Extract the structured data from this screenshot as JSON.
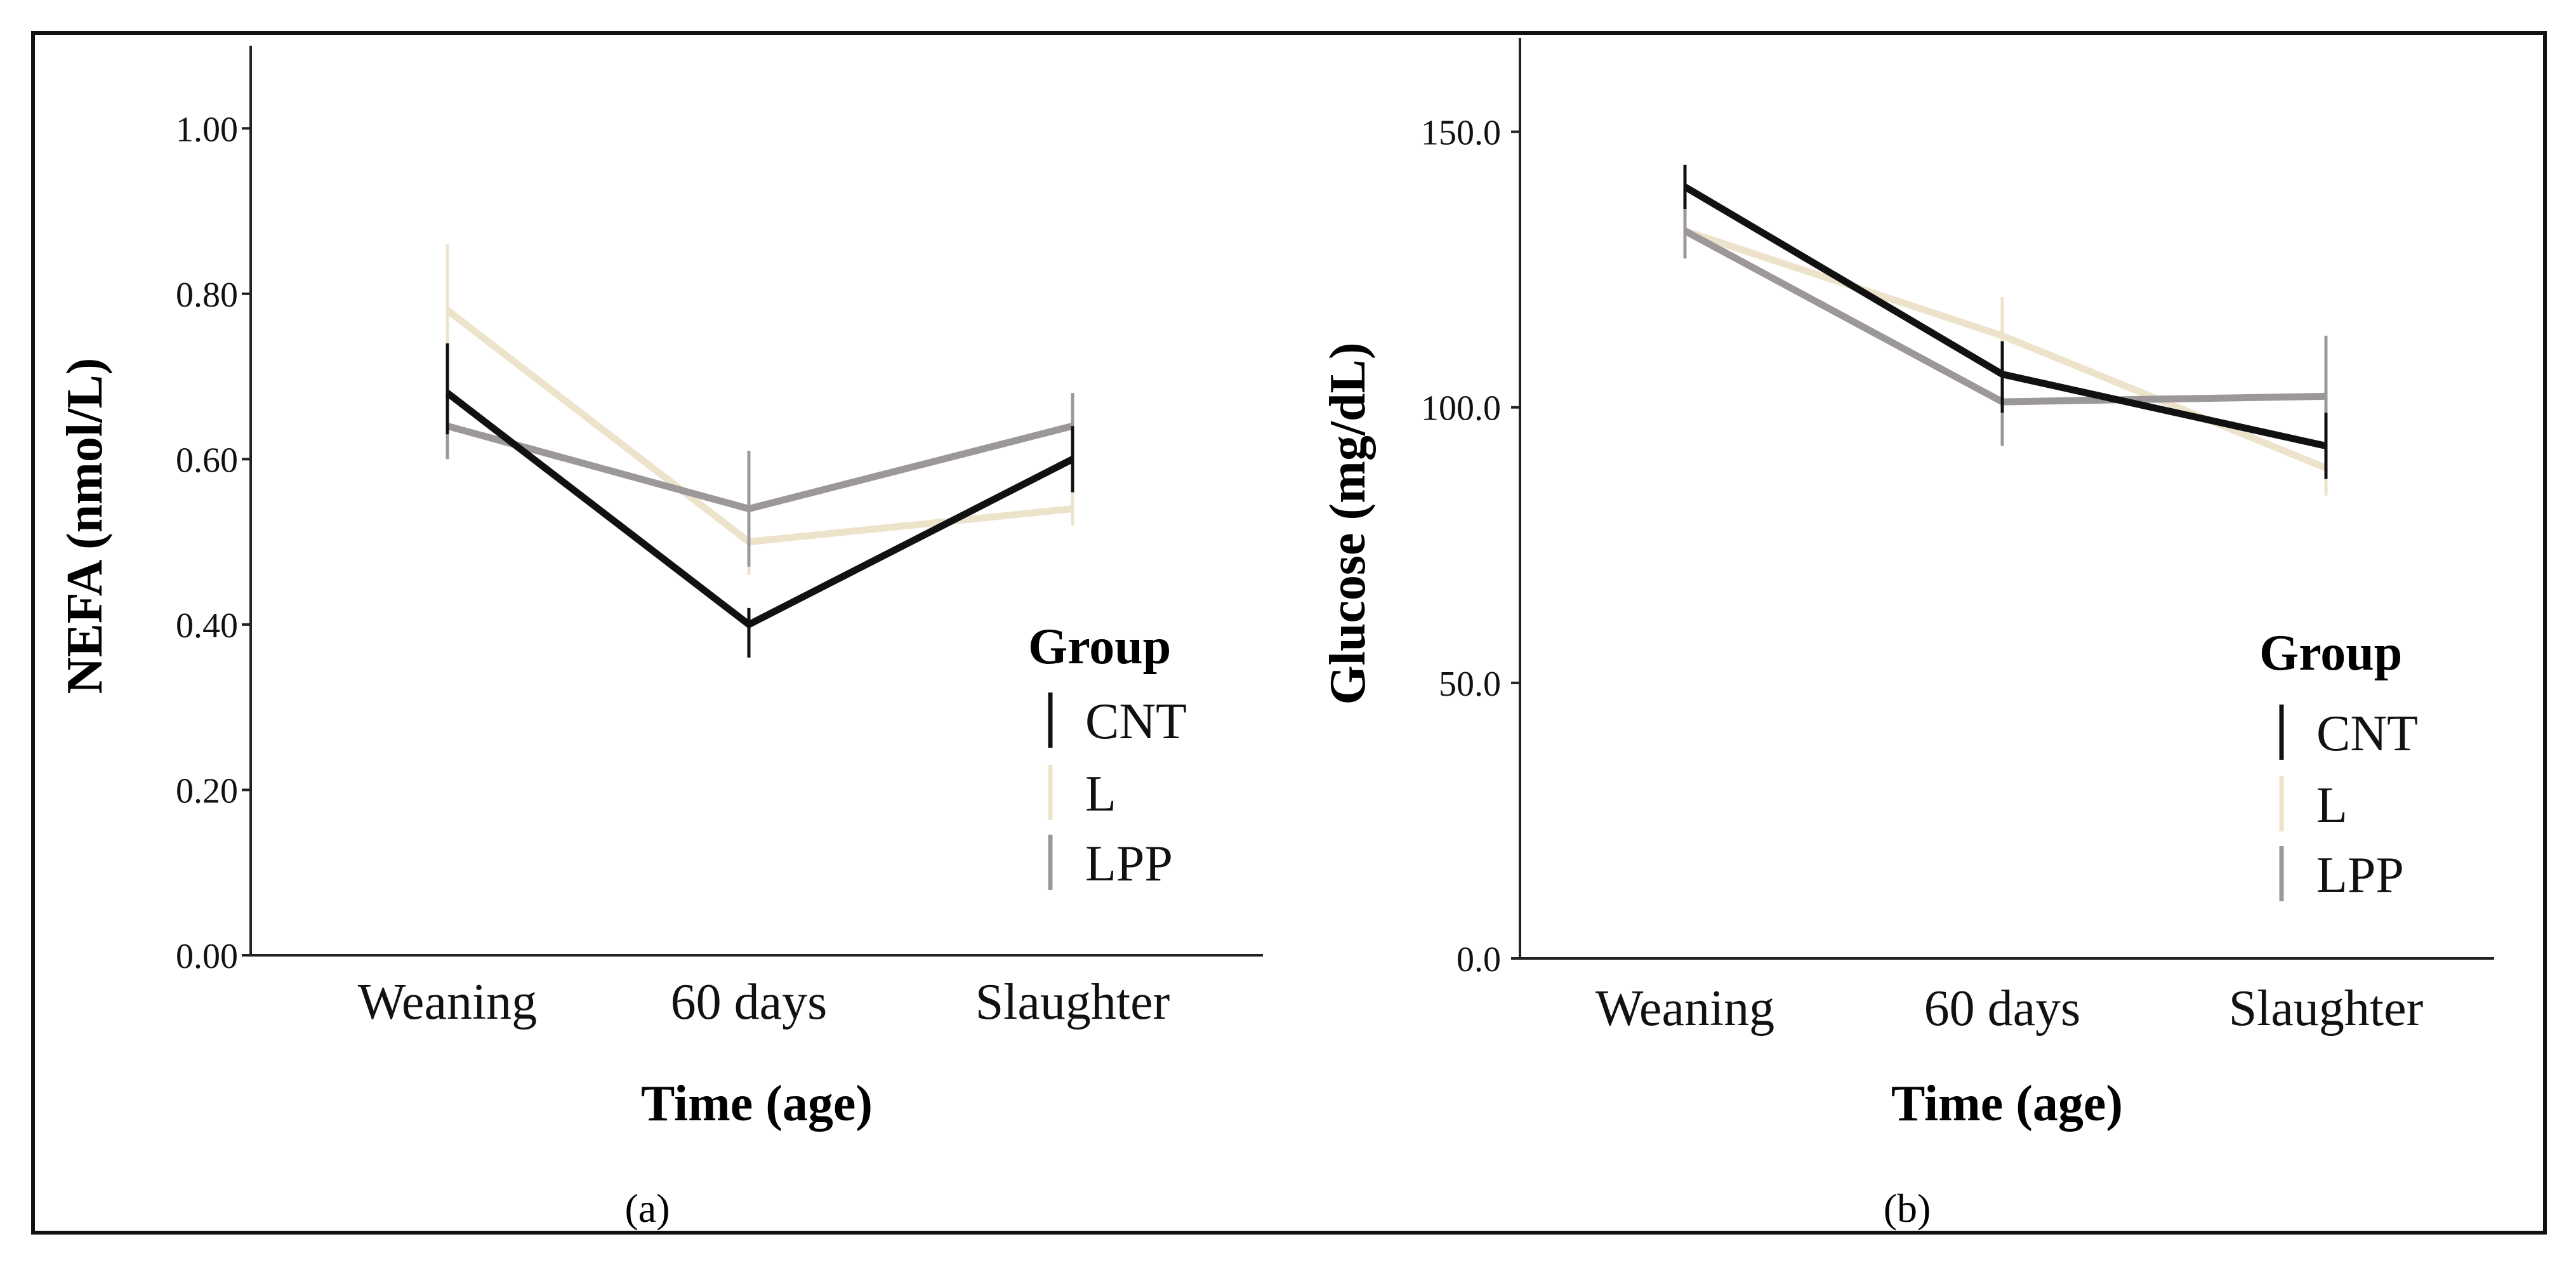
{
  "colors": {
    "CNT": "#111111",
    "L": "#ede3cb",
    "LPP": "#9c9899",
    "axis": "#222222",
    "frame": "#111111"
  },
  "chart_data": [
    {
      "type": "line",
      "panel_label": "(a)",
      "title": "",
      "xlabel": "Time (age)",
      "ylabel": "NEFA  (nmol/L)",
      "categories": [
        "Weaning",
        "60 days",
        "Slaughter"
      ],
      "ylim": [
        0,
        1.1
      ],
      "yticks": [
        0,
        0.2,
        0.4,
        0.6,
        0.8,
        1.0
      ],
      "ytick_labels": [
        "0.00",
        "0.20",
        "0.40",
        "0.60",
        "0.80",
        "1.00"
      ],
      "legend": {
        "title": "Group",
        "position": "right"
      },
      "series": [
        {
          "name": "CNT",
          "values": [
            0.68,
            0.4,
            0.6
          ],
          "err_low": [
            0.63,
            0.36,
            0.56
          ],
          "err_high": [
            0.74,
            0.42,
            0.64
          ]
        },
        {
          "name": "L",
          "values": [
            0.78,
            0.5,
            0.54
          ],
          "err_low": [
            0.7,
            0.46,
            0.52
          ],
          "err_high": [
            0.86,
            0.53,
            0.56
          ]
        },
        {
          "name": "LPP",
          "values": [
            0.64,
            0.54,
            0.64
          ],
          "err_low": [
            0.6,
            0.47,
            0.6
          ],
          "err_high": [
            0.68,
            0.61,
            0.68
          ]
        }
      ]
    },
    {
      "type": "line",
      "panel_label": "(b)",
      "title": "",
      "xlabel": "Time (age)",
      "ylabel": "Glucose (mg/dL)",
      "categories": [
        "Weaning",
        "60 days",
        "Slaughter"
      ],
      "ylim": [
        0,
        167
      ],
      "yticks": [
        0,
        50,
        100,
        150
      ],
      "ytick_labels": [
        "0.0",
        "50.0",
        "100.0",
        "150.0"
      ],
      "legend": {
        "title": "Group",
        "position": "right"
      },
      "series": [
        {
          "name": "CNT",
          "values": [
            140,
            106,
            93
          ],
          "err_low": [
            136,
            99,
            87
          ],
          "err_high": [
            144,
            112,
            99
          ]
        },
        {
          "name": "L",
          "values": [
            132,
            113,
            89
          ],
          "err_low": [
            128,
            106,
            84
          ],
          "err_high": [
            136,
            120,
            94
          ]
        },
        {
          "name": "LPP",
          "values": [
            132,
            101,
            102
          ],
          "err_low": [
            127,
            93,
            92
          ],
          "err_high": [
            136,
            108,
            113
          ]
        }
      ]
    }
  ]
}
